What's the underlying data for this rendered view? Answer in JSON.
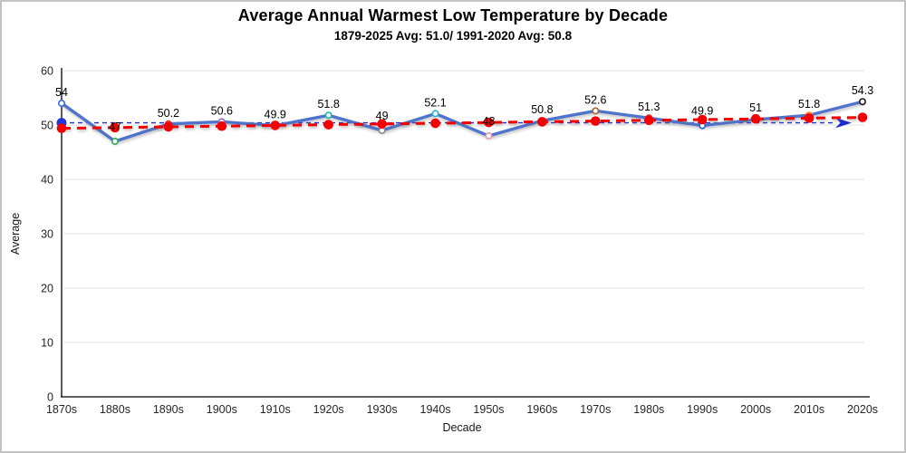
{
  "header": {
    "title": "Average Annual Warmest Low Temperature by Decade",
    "subtitle": "1879-2025 Avg: 51.0/ 1991-2020 Avg: 50.8"
  },
  "chart_data": {
    "type": "line",
    "title": "Average Annual Warmest Low Temperature by Decade",
    "subtitle": "1879-2025 Avg: 51.0/ 1991-2020 Avg: 50.8",
    "xlabel": "Decade",
    "ylabel": "Average",
    "ylim": [
      0,
      60
    ],
    "yticks": [
      0,
      10,
      20,
      30,
      40,
      50,
      60
    ],
    "grid": "horizontal-only",
    "legend": "none",
    "categories": [
      "1870s",
      "1880s",
      "1890s",
      "1900s",
      "1910s",
      "1920s",
      "1930s",
      "1940s",
      "1950s",
      "1960s",
      "1970s",
      "1980s",
      "1990s",
      "2000s",
      "2010s",
      "2020s"
    ],
    "series": [
      {
        "name": "decade-average",
        "type": "line-with-open-markers",
        "color": "#4e73cd",
        "values": [
          54,
          47,
          50.2,
          50.6,
          49.9,
          51.8,
          49,
          52.1,
          48,
          50.8,
          52.6,
          51.3,
          49.9,
          51,
          51.8,
          54.3
        ],
        "point_labels": [
          "54",
          "47",
          "50.2",
          "50.6",
          "49.9",
          "51.8",
          "49",
          "52.1",
          "48",
          "50.8",
          "52.6",
          "51.3",
          "49.9",
          "51",
          "51.8",
          "54.3"
        ],
        "marker_colors": [
          "#3a6bd8",
          "#33a853",
          "#d62728",
          "#9467bd",
          "#ff8c1a",
          "#19b3a6",
          "#8c8c8c",
          "#2ab5c9",
          "#e89aa6",
          "#8c564b",
          "#a5662e",
          "#d62728",
          "#2753d4",
          "#bcbd22",
          "#ff7f0e",
          "#1a1a1a"
        ]
      },
      {
        "name": "rising-trend",
        "type": "dashed-line-with-dots",
        "color": "#f50000",
        "values": [
          49.4,
          49.53,
          49.67,
          49.8,
          49.93,
          50.07,
          50.2,
          50.33,
          50.47,
          50.6,
          50.73,
          50.87,
          51.0,
          51.13,
          51.27,
          51.4
        ]
      },
      {
        "name": "flat-reference-arrow",
        "type": "dashed-line-with-arrow",
        "color": "#1c2bd0",
        "value": 50.4
      }
    ]
  }
}
